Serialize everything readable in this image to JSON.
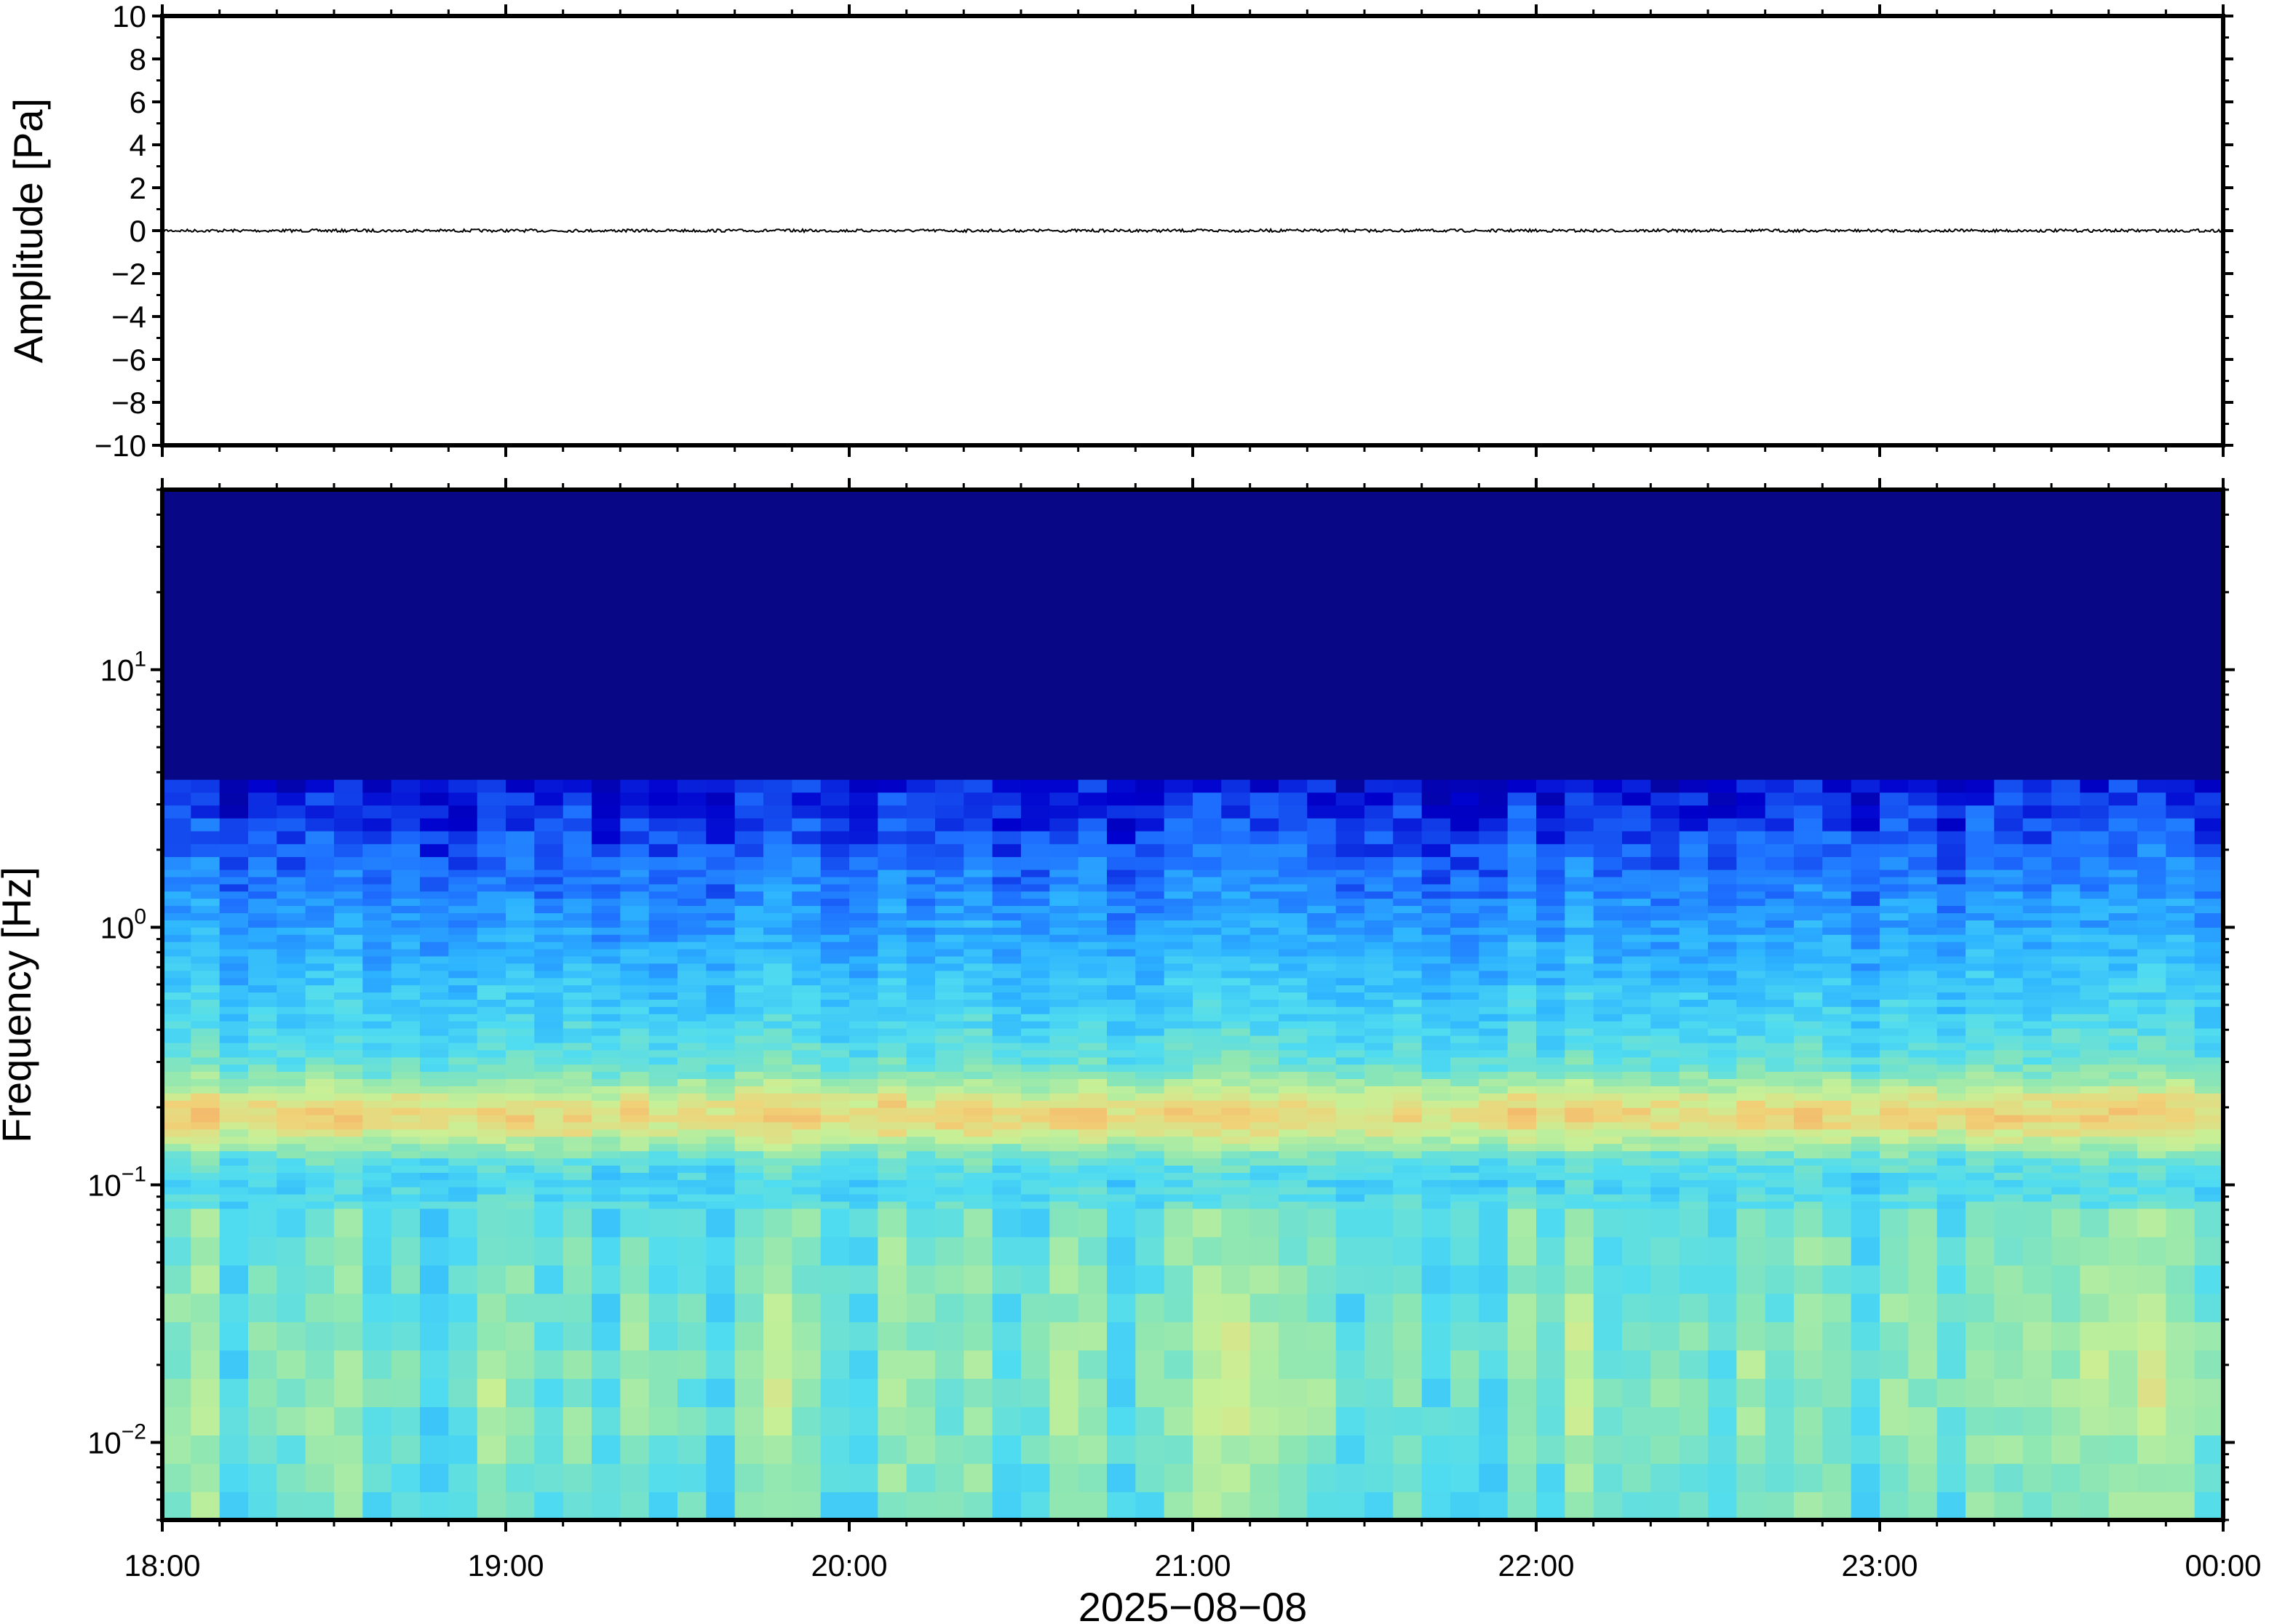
{
  "chart_data": [
    {
      "type": "line",
      "ylabel": "Amplitude [Pa]",
      "ylim": [
        -10,
        10
      ],
      "yticks": [
        10,
        8,
        6,
        4,
        2,
        0,
        -2,
        -4,
        -6,
        -8,
        -10
      ],
      "ytick_labels": [
        "10",
        "8",
        "6",
        "4",
        "2",
        "0",
        "−2",
        "−4",
        "−6",
        "−8",
        "−10"
      ],
      "series": [
        {
          "x_range": [
            "18:00",
            "00:00"
          ],
          "values_summary": "near-zero signal, peak amplitude about ±0.1 Pa",
          "color": "#000000"
        }
      ],
      "grid": false
    },
    {
      "type": "heatmap",
      "ylabel": "Frequency [Hz]",
      "y_scale": "log",
      "ylim": [
        0.005,
        50
      ],
      "yticks": [
        {
          "base": "10",
          "exp": "1",
          "value": 10
        },
        {
          "base": "10",
          "exp": "0",
          "value": 1
        },
        {
          "base": "10",
          "exp": "−1",
          "value": 0.1
        },
        {
          "base": "10",
          "exp": "−2",
          "value": 0.01
        }
      ],
      "xlabel": "2025−08−08",
      "xticks": [
        "18:00",
        "19:00",
        "20:00",
        "21:00",
        "22:00",
        "23:00",
        "00:00"
      ],
      "x_range_hours": [
        18,
        24
      ],
      "colormap": "jet",
      "colormap_stops": [
        "#0a0a78",
        "#0000cd",
        "#1e6fff",
        "#2db4ff",
        "#50dcf0",
        "#8ce6b4",
        "#c8f096",
        "#f0d278",
        "#f5aa64"
      ],
      "features": [
        {
          "description": "dark navy low-energy region",
          "freq_range_hz": [
            6,
            50
          ]
        },
        {
          "description": "blue transition band",
          "freq_range_hz": [
            0.8,
            6
          ]
        },
        {
          "description": "microseism peak, yellow-orange band",
          "freq_range_hz": [
            0.14,
            0.22
          ]
        },
        {
          "description": "cyan-green background with yellow patches",
          "freq_range_hz": [
            0.005,
            0.14
          ]
        }
      ],
      "grid": false
    }
  ]
}
